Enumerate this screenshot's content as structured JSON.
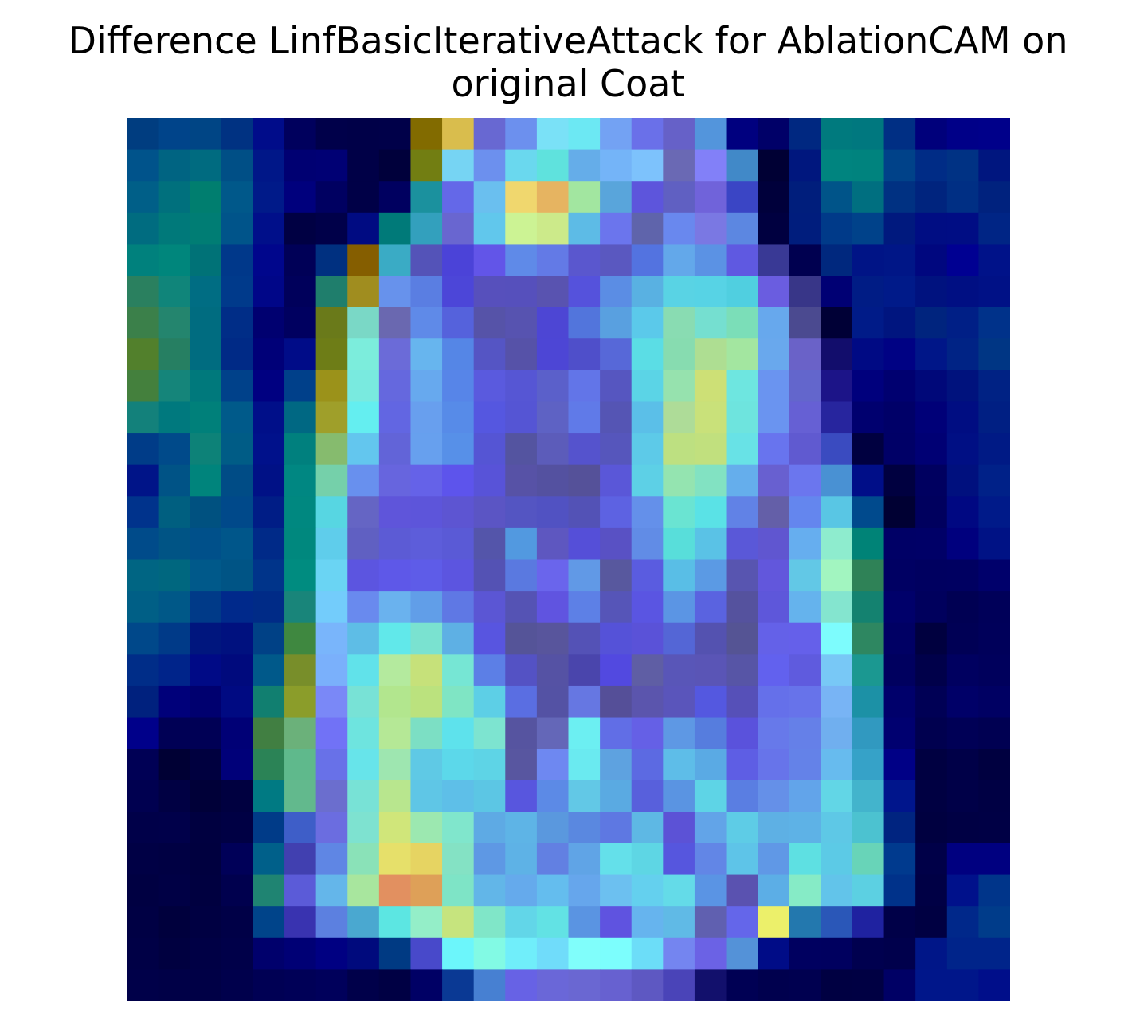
{
  "chart_data": {
    "type": "heatmap",
    "title": "Difference LinfBasicIterativeAttack for AblationCAM on original Coat",
    "xlabel": "",
    "ylabel": "",
    "axes_visible": false,
    "grid": false,
    "rows": 28,
    "cols": 28,
    "overlay": "jet colormap attribution difference blended over a grayscale coat image",
    "cell_colors": [
      [
        "#003d80",
        "#00448a",
        "#004585",
        "#003282",
        "#000c8a",
        "#00005d",
        "#00004a",
        "#000048",
        "#000049",
        "#826b00",
        "#d9bd4d",
        "#6868d2",
        "#6c90ee",
        "#7ae1f7",
        "#6ce8f3",
        "#73a2f3",
        "#6a70e9",
        "#6661c8",
        "#5395dc",
        "#00007f",
        "#000068",
        "#002881",
        "#007a7e",
        "#00787f",
        "#002f84",
        "#00007b",
        "#000088",
        "#00008a"
      ],
      [
        "#00538b",
        "#006482",
        "#006b80",
        "#004f86",
        "#001788",
        "#000072",
        "#000074",
        "#000047",
        "#00003b",
        "#727e12",
        "#76d4f3",
        "#6c90ee",
        "#6ad8ee",
        "#5fe2dd",
        "#65ade9",
        "#74b4f8",
        "#7dc2fc",
        "#6a69b4",
        "#8280f8",
        "#4189c8",
        "#000034",
        "#00177e",
        "#00847f",
        "#00837e",
        "#004289",
        "#002c86",
        "#003284",
        "#00167f"
      ],
      [
        "#005f88",
        "#00707d",
        "#007e6f",
        "#00588a",
        "#001a89",
        "#00007d",
        "#000061",
        "#000047",
        "#000060",
        "#1b919e",
        "#6468e8",
        "#6abfef",
        "#f0d76e",
        "#e6b461",
        "#a2e6a0",
        "#59a5db",
        "#5d55dc",
        "#6060c2",
        "#7063da",
        "#3a45c5",
        "#00003b",
        "#001e7c",
        "#005489",
        "#006f80",
        "#003182",
        "#00247e",
        "#002f84",
        "#00227e"
      ],
      [
        "#006c80",
        "#00797a",
        "#007d74",
        "#00548a",
        "#000f8a",
        "#000043",
        "#000049",
        "#000b82",
        "#007a79",
        "#33a0bd",
        "#6966d0",
        "#61c7ec",
        "#ccf394",
        "#ccea8a",
        "#5dbbe6",
        "#6b75ed",
        "#5f64ab",
        "#6988ee",
        "#7a78e3",
        "#5c87e1",
        "#000040",
        "#001d7d",
        "#003a89",
        "#00428a",
        "#00197e",
        "#000d83",
        "#000d84",
        "#002585"
      ],
      [
        "#00817d",
        "#00867c",
        "#007277",
        "#00388a",
        "#00068c",
        "#000057",
        "#003080",
        "#855e00",
        "#3aabc5",
        "#5453b8",
        "#4b43d8",
        "#6255e8",
        "#5f8ae8",
        "#637ae6",
        "#5a57ce",
        "#5a58c0",
        "#5373e0",
        "#63a8ea",
        "#5b92e4",
        "#5f59e1",
        "#393995",
        "#000050",
        "#00287e",
        "#001486",
        "#001687",
        "#00077f",
        "#000092",
        "#001289"
      ],
      [
        "#2a805f",
        "#10857a",
        "#006d83",
        "#003a8b",
        "#000688",
        "#00005b",
        "#1f7e6c",
        "#a08d1f",
        "#6792ec",
        "#5a7ee2",
        "#4c46d8",
        "#5750bc",
        "#5650bc",
        "#5953b0",
        "#5552dc",
        "#5b8de4",
        "#59b1e2",
        "#59d3e4",
        "#57d3e5",
        "#50cfe0",
        "#6a5de0",
        "#383688",
        "#000074",
        "#001c85",
        "#001a89",
        "#00127f",
        "#000f83",
        "#001186"
      ],
      [
        "#3b804a",
        "#24856e",
        "#006c80",
        "#002d87",
        "#000070",
        "#000060",
        "#6a7a1a",
        "#7ad8c6",
        "#6a68b0",
        "#5f8ae8",
        "#5562dc",
        "#5653a8",
        "#5753b0",
        "#4d46d4",
        "#5275dc",
        "#59a0e0",
        "#5bc9ea",
        "#89dcb2",
        "#75dfd0",
        "#7bdeb8",
        "#67a8ed",
        "#4b4a90",
        "#000036",
        "#001b88",
        "#00157f",
        "#00247e",
        "#001f86",
        "#00328a"
      ],
      [
        "#52802c",
        "#267f62",
        "#006c80",
        "#002a86",
        "#000078",
        "#000c88",
        "#6e7d17",
        "#7ceddc",
        "#6b6bd8",
        "#67b5ee",
        "#5586e6",
        "#5555c4",
        "#5652a8",
        "#4d46d5",
        "#4f4fca",
        "#5768d8",
        "#5bdde5",
        "#87dcb0",
        "#aede92",
        "#a3e6a0",
        "#69a8ed",
        "#6a62c8",
        "#120d6c",
        "#000a84",
        "#000284",
        "#001688",
        "#002385",
        "#003684"
      ],
      [
        "#44803d",
        "#15857a",
        "#00797c",
        "#00418a",
        "#000081",
        "#00408a",
        "#9b921a",
        "#79eadf",
        "#6568de",
        "#67a9ee",
        "#5785e8",
        "#5a5ade",
        "#5656d4",
        "#5b60ca",
        "#6275e8",
        "#5656c0",
        "#5bd4e6",
        "#96e2ae",
        "#cde076",
        "#6ee6e0",
        "#6a94f0",
        "#6366cc",
        "#1c1488",
        "#00007d",
        "#000070",
        "#000879",
        "#00127d",
        "#002284"
      ],
      [
        "#13817b",
        "#00797e",
        "#00807a",
        "#005a8a",
        "#000f89",
        "#006883",
        "#9f9f2a",
        "#64eef0",
        "#6266e2",
        "#689fee",
        "#578be8",
        "#5557e0",
        "#5555d4",
        "#5e62c4",
        "#607ae8",
        "#5555b4",
        "#5bbfe8",
        "#aedc98",
        "#c9e17a",
        "#6ee4de",
        "#6a94f0",
        "#6660d4",
        "#27259e",
        "#00006f",
        "#000068",
        "#000078",
        "#000d82",
        "#001f83"
      ],
      [
        "#003c88",
        "#004a8a",
        "#0d8278",
        "#005c86",
        "#00118b",
        "#00807e",
        "#86bb6e",
        "#63c6ee",
        "#6264d8",
        "#67a0ee",
        "#5790e8",
        "#5555d4",
        "#5454a0",
        "#5c5cba",
        "#5553cd",
        "#5656bc",
        "#5dcae8",
        "#bde081",
        "#c1e07e",
        "#68e2e6",
        "#6874ee",
        "#605ad0",
        "#3a4bc0",
        "#000040",
        "#000067",
        "#000074",
        "#000f84",
        "#001a85"
      ],
      [
        "#001488",
        "#005386",
        "#00847c",
        "#004c86",
        "#001186",
        "#008782",
        "#75d0aa",
        "#6890ee",
        "#6765de",
        "#6562e8",
        "#5d54ec",
        "#5853d8",
        "#5752a6",
        "#5451a0",
        "#555199",
        "#5a57d8",
        "#5dd0e6",
        "#94e4b0",
        "#82e2c2",
        "#65aeec",
        "#6860d0",
        "#6b76ee",
        "#4991d3",
        "#000e88",
        "#000040",
        "#000060",
        "#00107e",
        "#002188"
      ],
      [
        "#00338c",
        "#005f80",
        "#005180",
        "#00498a",
        "#001d86",
        "#008880",
        "#57d6e2",
        "#6565c4",
        "#5f55da",
        "#5d55da",
        "#5d55d2",
        "#5b55c4",
        "#5455c2",
        "#5152c2",
        "#5352b6",
        "#5d62e2",
        "#6490ea",
        "#6ae4d2",
        "#5ae2e6",
        "#6182e6",
        "#645fa8",
        "#6486ee",
        "#59c6e4",
        "#004a8d",
        "#000033",
        "#00005e",
        "#000882",
        "#001a89"
      ],
      [
        "#004b8a",
        "#005485",
        "#00508a",
        "#00568a",
        "#002a88",
        "#00887e",
        "#5fcdeb",
        "#6060c2",
        "#5c5bd5",
        "#5d5dda",
        "#5a5ad6",
        "#5455aa",
        "#5299e0",
        "#5e57c0",
        "#554fd8",
        "#5951c4",
        "#618ce6",
        "#58deda",
        "#5ac2e6",
        "#5a58d8",
        "#6056d0",
        "#66aeef",
        "#8eecce",
        "#008377",
        "#000066",
        "#000067",
        "#00007e",
        "#001285"
      ],
      [
        "#006583",
        "#00677f",
        "#00598a",
        "#005485",
        "#00348a",
        "#008c80",
        "#6ad4f3",
        "#5c55e0",
        "#5e58e8",
        "#5e5ce8",
        "#5c55e0",
        "#5452b4",
        "#5a79e0",
        "#6a65ec",
        "#6199e6",
        "#58589e",
        "#5a5ce0",
        "#59bee6",
        "#5b9ae4",
        "#5855b0",
        "#6257dc",
        "#62c8e6",
        "#a2f5c0",
        "#2f8257",
        "#000063",
        "#000060",
        "#000061",
        "#00006b"
      ],
      [
        "#005f86",
        "#005888",
        "#003a88",
        "#00298b",
        "#002b87",
        "#19857a",
        "#73ccfb",
        "#698aee",
        "#6ab2ee",
        "#619ee8",
        "#5f78e4",
        "#5b56d4",
        "#5553b4",
        "#6054e0",
        "#5d80e6",
        "#5655b8",
        "#5a55e2",
        "#5b95e4",
        "#5a63e0",
        "#55529e",
        "#5e57da",
        "#65b3ed",
        "#84e5cf",
        "#148270",
        "#00006a",
        "#00005d",
        "#000053",
        "#000059"
      ],
      [
        "#00488a",
        "#003a88",
        "#00167e",
        "#00117f",
        "#004186",
        "#3f8840",
        "#79b5fb",
        "#5ebde6",
        "#61e8ea",
        "#7ae2d0",
        "#5eb0e4",
        "#5855e0",
        "#555498",
        "#58559c",
        "#5452b6",
        "#5552d8",
        "#5a52d8",
        "#5466d6",
        "#5452b0",
        "#555494",
        "#6461e8",
        "#6560ea",
        "#7dfcfd",
        "#2e8761",
        "#000064",
        "#00003f",
        "#000055",
        "#00005a"
      ],
      [
        "#002d88",
        "#00248a",
        "#000a86",
        "#000a7d",
        "#00598a",
        "#788e2a",
        "#7ab0fb",
        "#61e2ea",
        "#b4ea9e",
        "#c6e17a",
        "#76e6d4",
        "#5c7fe6",
        "#5452c4",
        "#5552a4",
        "#4a45ac",
        "#5249e0",
        "#5f5ea4",
        "#5956b8",
        "#5a55b6",
        "#5755a6",
        "#6261ee",
        "#5f5bde",
        "#78c8f6",
        "#1b9891",
        "#00005f",
        "#00004a",
        "#000060",
        "#00005c"
      ],
      [
        "#00217e",
        "#00007a",
        "#00006f",
        "#000a82",
        "#117f70",
        "#8b9d2a",
        "#7a88f7",
        "#78e2d6",
        "#b2e68e",
        "#bbe27e",
        "#7fe5c4",
        "#5dcfe6",
        "#5a6ee2",
        "#5452a4",
        "#6677e2",
        "#554f98",
        "#5b55ad",
        "#5a55bb",
        "#5458e0",
        "#5650b8",
        "#6570ea",
        "#6773ea",
        "#78b4f5",
        "#1c91a6",
        "#00006b",
        "#000055",
        "#000068",
        "#000063"
      ],
      [
        "#00008a",
        "#000055",
        "#000055",
        "#000076",
        "#417f42",
        "#6bb17a",
        "#7172f6",
        "#6ee4df",
        "#b5e896",
        "#7cdfc4",
        "#5ee2ec",
        "#7de4d0",
        "#5654a0",
        "#6467b8",
        "#6ceff2",
        "#616ee6",
        "#6560e6",
        "#5e98e4",
        "#567dde",
        "#5a52dc",
        "#6779ea",
        "#6580e8",
        "#70afef",
        "#3199c0",
        "#000070",
        "#00004f",
        "#000056",
        "#000052"
      ],
      [
        "#000055",
        "#000034",
        "#00003f",
        "#000079",
        "#2b8356",
        "#5fb98c",
        "#6871e8",
        "#67e4ea",
        "#9ee6b0",
        "#5fc9e5",
        "#5cd8ea",
        "#5ed4e6",
        "#5856a0",
        "#6e88f1",
        "#6aeaf0",
        "#5ea2e0",
        "#5c6ae2",
        "#5ebde8",
        "#5aaae4",
        "#5e5ee4",
        "#6774ea",
        "#6482e8",
        "#67bbee",
        "#36a2c8",
        "#000086",
        "#000041",
        "#000048",
        "#000040"
      ],
      [
        "#000050",
        "#000043",
        "#000038",
        "#000040",
        "#007a83",
        "#62b98d",
        "#6b6ece",
        "#78e2d6",
        "#b8e68e",
        "#5fc6e6",
        "#5ebfe8",
        "#5cc6e4",
        "#5856de",
        "#5c8ae6",
        "#62c8e6",
        "#5aaae2",
        "#5860dc",
        "#5a94e2",
        "#5ed4e6",
        "#5a7ee2",
        "#6590e8",
        "#62a4ea",
        "#62d6e6",
        "#43b4cc",
        "#00158c",
        "#000042",
        "#000048",
        "#000044"
      ],
      [
        "#000049",
        "#00004a",
        "#000040",
        "#000044",
        "#003b88",
        "#3e5ec8",
        "#6b6de0",
        "#7ee2d0",
        "#d0e67a",
        "#9ce8b0",
        "#80e6cc",
        "#5eaae4",
        "#5eb4e6",
        "#5a98de",
        "#5a88e0",
        "#5e78e2",
        "#5eb8e4",
        "#5c52d6",
        "#62a4e8",
        "#5ecce6",
        "#5eb0e4",
        "#5eb2e6",
        "#5ec8e6",
        "#4cc2d0",
        "#002480",
        "#000040",
        "#000044",
        "#000045"
      ],
      [
        "#000045",
        "#000043",
        "#00003f",
        "#000058",
        "#00608a",
        "#4140b0",
        "#5f86e4",
        "#8ae2b8",
        "#e6e06a",
        "#e6d462",
        "#84e2c4",
        "#5e98e4",
        "#5eb2e6",
        "#6280e2",
        "#60a4e6",
        "#64e0ea",
        "#5ed6e4",
        "#5656de",
        "#6286e6",
        "#5ec4e8",
        "#6098e6",
        "#5ee0e2",
        "#5ccae6",
        "#68d4b8",
        "#003a8e",
        "#000048",
        "#000080",
        "#000080"
      ],
      [
        "#000042",
        "#000045",
        "#000040",
        "#00004e",
        "#1f8472",
        "#5b5bd8",
        "#64b6ea",
        "#a8e69e",
        "#e29060",
        "#dea058",
        "#7ee4c6",
        "#62b6e8",
        "#65aaec",
        "#64bdee",
        "#66a6ec",
        "#6cc0f0",
        "#64d0ee",
        "#64dbe8",
        "#5a94e4",
        "#5a52b0",
        "#5caee6",
        "#86ebc6",
        "#62c4ea",
        "#5cd0e2",
        "#00328a",
        "#000045",
        "#00118b",
        "#00358a"
      ],
      [
        "#000044",
        "#00003d",
        "#000042",
        "#000047",
        "#00448a",
        "#3933b0",
        "#5c80e0",
        "#4aa8d0",
        "#5ce6e2",
        "#94eec8",
        "#c6e47e",
        "#80e6c8",
        "#62d6e8",
        "#62e2e4",
        "#5a94e2",
        "#5f53e0",
        "#66b4ee",
        "#60bae6",
        "#6060b0",
        "#6466ea",
        "#ecf06a",
        "#2378ae",
        "#2a57b8",
        "#1f22a0",
        "#000048",
        "#000042",
        "#00288a",
        "#003c8a"
      ],
      [
        "#000046",
        "#000040",
        "#000045",
        "#000049",
        "#00006c",
        "#000075",
        "#000082",
        "#000a7d",
        "#003a83",
        "#4849ca",
        "#6cf6fb",
        "#82fae4",
        "#70eefa",
        "#70dcfa",
        "#80fefb",
        "#7cfefd",
        "#6cddf8",
        "#7485f0",
        "#6b62e5",
        "#5492d8",
        "#000c87",
        "#000060",
        "#00005f",
        "#00004f",
        "#00004c",
        "#001688",
        "#00248a",
        "#00248a"
      ],
      [
        "#000049",
        "#000047",
        "#000046",
        "#00004c",
        "#000054",
        "#000057",
        "#00005b",
        "#00004a",
        "#000044",
        "#000065",
        "#0a3994",
        "#4780d2",
        "#6762e5",
        "#6a67d8",
        "#6a67d2",
        "#6761d0",
        "#5e58c2",
        "#4a44b8",
        "#12106c",
        "#000054",
        "#00004e",
        "#000050",
        "#000042",
        "#000043",
        "#000065",
        "#00168a",
        "#00168a",
        "#000e8a"
      ]
    ]
  }
}
